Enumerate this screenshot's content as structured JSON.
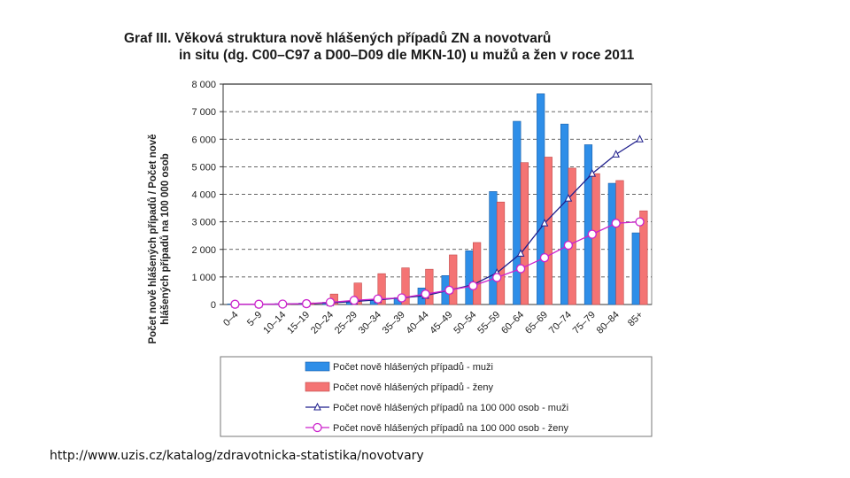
{
  "chart_data": {
    "type": "bar+line",
    "title_line1": "Graf III. Věková struktura nově hlášených případů ZN a novotvarů",
    "title_line2": "in situ (dg. C00–C97 a D00–D09 dle MKN-10) u mužů a žen v roce 2011",
    "ylabel_line1": "Počet nově hlášených případů / Počet nově",
    "ylabel_line2": "hlášených případů na 100 000 osob",
    "xlabel": "",
    "ylim": [
      0,
      8000
    ],
    "yticks": [
      0,
      1000,
      2000,
      3000,
      4000,
      5000,
      6000,
      7000,
      8000
    ],
    "ytick_labels": [
      "0",
      "1 000",
      "2 000",
      "3 000",
      "4 000",
      "5 000",
      "6 000",
      "7 000",
      "8 000"
    ],
    "grid": "dashed horizontal",
    "legend_position": "bottom",
    "categories": [
      "0–4",
      "5–9",
      "10–14",
      "15–19",
      "20–24",
      "25–29",
      "30–34",
      "35–39",
      "40–44",
      "45–49",
      "50–54",
      "55–59",
      "60–64",
      "65–69",
      "70–74",
      "75–79",
      "80–84",
      "85+"
    ],
    "series": [
      {
        "name": "Počet nově hlášených případů - muži",
        "kind": "bar",
        "color": "#2e8ee8",
        "values": [
          20,
          20,
          30,
          50,
          80,
          120,
          160,
          250,
          600,
          1050,
          1950,
          4100,
          6650,
          7650,
          6550,
          5800,
          4400,
          2600
        ]
      },
      {
        "name": "Počet nově hlášených případů - ženy",
        "kind": "bar",
        "color": "#f47474",
        "values": [
          20,
          20,
          30,
          60,
          380,
          780,
          1120,
          1330,
          1280,
          1800,
          2250,
          3720,
          5150,
          5350,
          4950,
          4750,
          4500,
          3400
        ]
      },
      {
        "name": "Počet nově hlášených případů na 100 000 osob - muži",
        "kind": "line",
        "marker": "triangle",
        "color": "#1f1f8c",
        "values": [
          10,
          10,
          15,
          30,
          60,
          110,
          170,
          240,
          320,
          520,
          720,
          1150,
          1850,
          2950,
          3850,
          4750,
          5450,
          6000
        ]
      },
      {
        "name": "Počet nově hlášených případů na 100 000 osob - ženy",
        "kind": "line",
        "marker": "circle",
        "color": "#cc22cc",
        "values": [
          10,
          10,
          15,
          30,
          80,
          150,
          200,
          240,
          380,
          520,
          680,
          980,
          1300,
          1700,
          2150,
          2550,
          2950,
          3000
        ]
      }
    ],
    "legend": [
      "Počet nově hlášených případů - muži",
      "Počet nově hlášených případů - ženy",
      "Počet nově hlášených případů na 100 000 osob - muži",
      "Počet nově hlášených případů na 100 000 osob - ženy"
    ]
  },
  "source_url": "http://www.uzis.cz/katalog/zdravotnicka-statistika/novotvary"
}
